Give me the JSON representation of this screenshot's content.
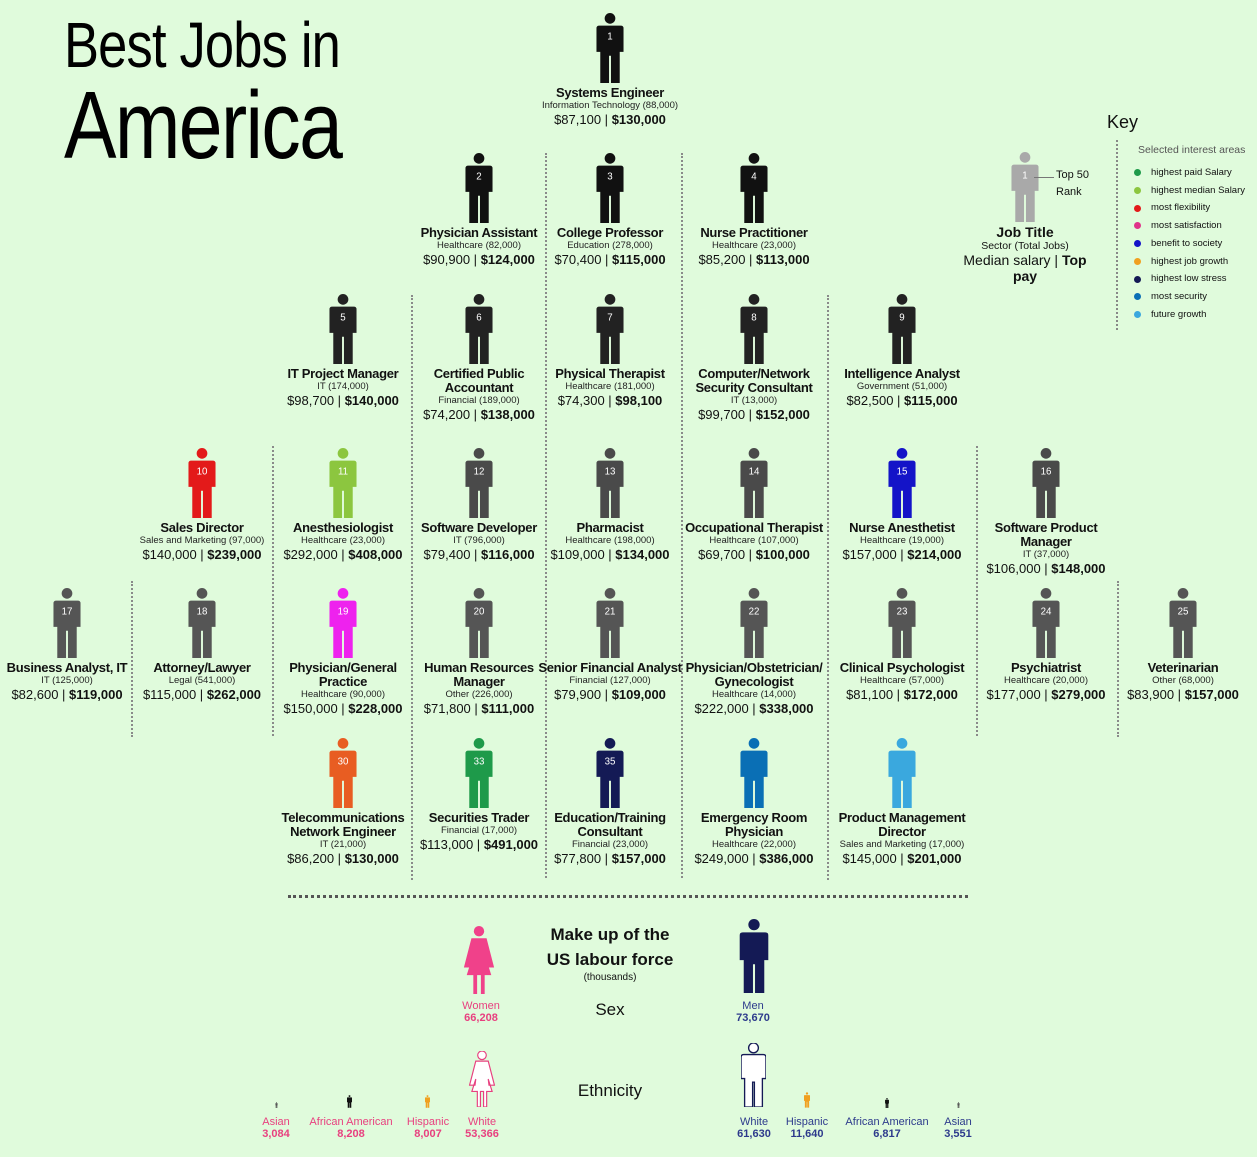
{
  "title": {
    "line1": "Best Jobs in",
    "line2": "America"
  },
  "colors": {
    "default_figure": "#555555",
    "top_figure": "#111111",
    "legend_figure": "#a9a9a9",
    "women": "#f0418a",
    "men": "#141a55"
  },
  "jobs": [
    {
      "rank": "1",
      "title": "Systems Engineer",
      "sector": "Information Technology (88,000)",
      "median": "$87,100 |",
      "top": "$130,000",
      "color": "#111111"
    },
    {
      "rank": "2",
      "title": "Physician Assistant",
      "sector": "Healthcare (82,000)",
      "median": "$90,900 |",
      "top": "$124,000",
      "color": "#111111"
    },
    {
      "rank": "3",
      "title": "College Professor",
      "sector": "Education (278,000)",
      "median": "$70,400 |",
      "top": "$115,000",
      "color": "#111111"
    },
    {
      "rank": "4",
      "title": "Nurse Practitioner",
      "sector": "Healthcare (23,000)",
      "median": "$85,200 |",
      "top": "$113,000",
      "color": "#111111"
    },
    {
      "rank": "5",
      "title": "IT Project Manager",
      "sector": "IT (174,000)",
      "median": "$98,700 |",
      "top": "$140,000",
      "color": "#222222"
    },
    {
      "rank": "6",
      "title": "Certified Public Accountant",
      "sector": "Financial (189,000)",
      "median": "$74,200 |",
      "top": "$138,000",
      "color": "#222222"
    },
    {
      "rank": "7",
      "title": "Physical Therapist",
      "sector": "Healthcare (181,000)",
      "median": "$74,300 |",
      "top": "$98,100",
      "color": "#222222"
    },
    {
      "rank": "8",
      "title": "Computer/Network Security Consultant",
      "sector": "IT (13,000)",
      "median": "$99,700 |",
      "top": "$152,000",
      "color": "#222222"
    },
    {
      "rank": "9",
      "title": "Intelligence Analyst",
      "sector": "Government (51,000)",
      "median": "$82,500 |",
      "top": "$115,000",
      "color": "#222222"
    },
    {
      "rank": "10",
      "title": "Sales Director",
      "sector": "Sales and Marketing (97,000)",
      "median": "$140,000 |",
      "top": "$239,000",
      "color": "#e31a1a"
    },
    {
      "rank": "11",
      "title": "Anesthesiologist",
      "sector": "Healthcare (23,000)",
      "median": "$292,000 |",
      "top": "$408,000",
      "color": "#8cc63f"
    },
    {
      "rank": "12",
      "title": "Software Developer",
      "sector": "IT (796,000)",
      "median": "$79,400 |",
      "top": "$116,000",
      "color": "#4a4a4a"
    },
    {
      "rank": "13",
      "title": "Pharmacist",
      "sector": "Healthcare (198,000)",
      "median": "$109,000 |",
      "top": "$134,000",
      "color": "#4a4a4a"
    },
    {
      "rank": "14",
      "title": "Occupational Therapist",
      "sector": "Healthcare (107,000)",
      "median": "$69,700 |",
      "top": "$100,000",
      "color": "#4a4a4a"
    },
    {
      "rank": "15",
      "title": "Nurse Anesthetist",
      "sector": "Healthcare (19,000)",
      "median": "$157,000 |",
      "top": "$214,000",
      "color": "#1414c8"
    },
    {
      "rank": "16",
      "title": "Software Product Manager",
      "sector": "IT (37,000)",
      "median": "$106,000 |",
      "top": "$148,000",
      "color": "#4a4a4a"
    },
    {
      "rank": "17",
      "title": "Business Analyst, IT",
      "sector": "IT (125,000)",
      "median": "$82,600 |",
      "top": "$119,000",
      "color": "#555555"
    },
    {
      "rank": "18",
      "title": "Attorney/Lawyer",
      "sector": "Legal (541,000)",
      "median": "$115,000 |",
      "top": "$262,000",
      "color": "#555555"
    },
    {
      "rank": "19",
      "title": "Physician/General Practice",
      "sector": "Healthcare (90,000)",
      "median": "$150,000 |",
      "top": "$228,000",
      "color": "#ee22ee"
    },
    {
      "rank": "20",
      "title": "Human Resources Manager",
      "sector": "Other (226,000)",
      "median": "$71,800 |",
      "top": "$111,000",
      "color": "#555555"
    },
    {
      "rank": "21",
      "title": "Senior Financial Analyst",
      "sector": "Financial (127,000)",
      "median": "$79,900 |",
      "top": "$109,000",
      "color": "#555555"
    },
    {
      "rank": "22",
      "title": "Physician/Obstetrician/ Gynecologist",
      "sector": "Healthcare (14,000)",
      "median": "$222,000 |",
      "top": "$338,000",
      "color": "#555555"
    },
    {
      "rank": "23",
      "title": "Clinical Psychologist",
      "sector": "Healthcare (57,000)",
      "median": "$81,100 |",
      "top": "$172,000",
      "color": "#555555"
    },
    {
      "rank": "24",
      "title": "Psychiatrist",
      "sector": "Healthcare (20,000)",
      "median": "$177,000 |",
      "top": "$279,000",
      "color": "#555555"
    },
    {
      "rank": "25",
      "title": "Veterinarian",
      "sector": "Other (68,000)",
      "median": "$83,900 |",
      "top": "$157,000",
      "color": "#555555"
    },
    {
      "rank": "30",
      "title": "Telecommunications Network Engineer",
      "sector": "IT (21,000)",
      "median": "$86,200 |",
      "top": "$130,000",
      "color": "#e85d22"
    },
    {
      "rank": "33",
      "title": "Securities Trader",
      "sector": "Financial (17,000)",
      "median": "$113,000 |",
      "top": "$491,000",
      "color": "#1e9a4a"
    },
    {
      "rank": "35",
      "title": "Education/Training Consultant",
      "sector": "Financial (23,000)",
      "median": "$77,800 |",
      "top": "$157,000",
      "color": "#141a55"
    },
    {
      "rank": "",
      "title": "Emergency Room Physician",
      "sector": "Healthcare (22,000)",
      "median": "$249,000 |",
      "top": "$386,000",
      "color": "#0a6fb5"
    },
    {
      "rank": "",
      "title": "Product Management Director",
      "sector": "Sales and Marketing (17,000)",
      "median": "$145,000 |",
      "top": "$201,000",
      "color": "#3aa8de"
    }
  ],
  "legend": {
    "rank": "1",
    "rank_label_1": "Top 50",
    "rank_label_2": "Rank",
    "title": "Job Title",
    "sector": "Sector (Total Jobs)",
    "median": "Median salary |",
    "top": "Top pay"
  },
  "key": {
    "title": "Key",
    "subtitle": "Selected interest areas",
    "items": [
      {
        "label": "highest paid Salary",
        "color": "#1e9a4a"
      },
      {
        "label": "highest median Salary",
        "color": "#8cc63f"
      },
      {
        "label": "most flexibility",
        "color": "#e31a1a"
      },
      {
        "label": "most satisfaction",
        "color": "#e0338a"
      },
      {
        "label": "benefit to society",
        "color": "#1414c8"
      },
      {
        "label": "highest job growth",
        "color": "#f0a020"
      },
      {
        "label": "highest low stress",
        "color": "#141a55"
      },
      {
        "label": "most security",
        "color": "#0a6fb5"
      },
      {
        "label": "future growth",
        "color": "#3aa8de"
      }
    ]
  },
  "labour": {
    "title_1": "Make up of the",
    "title_2": "US labour force",
    "unit": "(thousands)",
    "sex_label": "Sex",
    "ethnicity_label": "Ethnicity",
    "women": {
      "label": "Women",
      "value": "66,208"
    },
    "men": {
      "label": "Men",
      "value": "73,670"
    },
    "women_ethnic": [
      {
        "label": "Asian",
        "value": "3,084"
      },
      {
        "label": "African American",
        "value": "8,208"
      },
      {
        "label": "Hispanic",
        "value": "8,007"
      },
      {
        "label": "White",
        "value": "53,366"
      }
    ],
    "men_ethnic": [
      {
        "label": "White",
        "value": "61,630"
      },
      {
        "label": "Hispanic",
        "value": "11,640"
      },
      {
        "label": "African American",
        "value": "6,817"
      },
      {
        "label": "Asian",
        "value": "3,551"
      }
    ]
  }
}
